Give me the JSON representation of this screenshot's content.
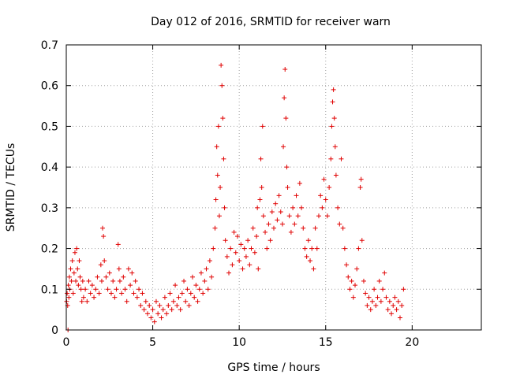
{
  "chart_data": {
    "type": "scatter",
    "title": "Day 012 of 2016, SRMTID for receiver warn",
    "xlabel": "GPS time / hours",
    "ylabel": "SRMTID / TECUs",
    "xlim": [
      0,
      24
    ],
    "ylim": [
      0,
      0.7
    ],
    "xticks": [
      0,
      5,
      10,
      15,
      20
    ],
    "xtick_labels": [
      "0",
      "5",
      "10",
      "15",
      "20"
    ],
    "yticks": [
      0,
      0.1,
      0.2,
      0.3,
      0.4,
      0.5,
      0.6,
      0.7
    ],
    "ytick_labels": [
      "0",
      "0.1",
      "0.2",
      "0.3",
      "0.4",
      "0.5",
      "0.6",
      "0.7"
    ],
    "grid": true,
    "marker": "+",
    "color": "#e00000",
    "series": [
      {
        "name": "SRMTID",
        "points": [
          [
            0.02,
            0.07
          ],
          [
            0.05,
            0.09
          ],
          [
            0.08,
            0.06
          ],
          [
            0.1,
            0.0
          ],
          [
            0.12,
            0.11
          ],
          [
            0.15,
            0.08
          ],
          [
            0.18,
            0.13
          ],
          [
            0.2,
            0.1
          ],
          [
            0.25,
            0.15
          ],
          [
            0.3,
            0.12
          ],
          [
            0.35,
            0.17
          ],
          [
            0.4,
            0.09
          ],
          [
            0.45,
            0.14
          ],
          [
            0.5,
            0.19
          ],
          [
            0.55,
            0.12
          ],
          [
            0.6,
            0.2
          ],
          [
            0.65,
            0.15
          ],
          [
            0.7,
            0.11
          ],
          [
            0.75,
            0.17
          ],
          [
            0.8,
            0.13
          ],
          [
            0.85,
            0.1
          ],
          [
            0.9,
            0.07
          ],
          [
            0.95,
            0.12
          ],
          [
            1.0,
            0.08
          ],
          [
            1.1,
            0.1
          ],
          [
            1.2,
            0.07
          ],
          [
            1.3,
            0.12
          ],
          [
            1.4,
            0.09
          ],
          [
            1.5,
            0.11
          ],
          [
            1.6,
            0.08
          ],
          [
            1.7,
            0.1
          ],
          [
            1.8,
            0.13
          ],
          [
            1.9,
            0.09
          ],
          [
            2.0,
            0.16
          ],
          [
            2.05,
            0.12
          ],
          [
            2.1,
            0.25
          ],
          [
            2.15,
            0.23
          ],
          [
            2.2,
            0.17
          ],
          [
            2.3,
            0.13
          ],
          [
            2.4,
            0.1
          ],
          [
            2.5,
            0.14
          ],
          [
            2.6,
            0.09
          ],
          [
            2.7,
            0.12
          ],
          [
            2.8,
            0.08
          ],
          [
            2.9,
            0.1
          ],
          [
            3.0,
            0.21
          ],
          [
            3.05,
            0.15
          ],
          [
            3.1,
            0.12
          ],
          [
            3.2,
            0.09
          ],
          [
            3.3,
            0.13
          ],
          [
            3.4,
            0.1
          ],
          [
            3.5,
            0.07
          ],
          [
            3.6,
            0.15
          ],
          [
            3.7,
            0.11
          ],
          [
            3.8,
            0.14
          ],
          [
            3.9,
            0.09
          ],
          [
            4.0,
            0.12
          ],
          [
            4.1,
            0.08
          ],
          [
            4.2,
            0.1
          ],
          [
            4.3,
            0.06
          ],
          [
            4.4,
            0.09
          ],
          [
            4.5,
            0.05
          ],
          [
            4.6,
            0.07
          ],
          [
            4.7,
            0.04
          ],
          [
            4.8,
            0.06
          ],
          [
            4.9,
            0.03
          ],
          [
            5.0,
            0.05
          ],
          [
            5.1,
            0.02
          ],
          [
            5.2,
            0.07
          ],
          [
            5.3,
            0.04
          ],
          [
            5.4,
            0.06
          ],
          [
            5.5,
            0.03
          ],
          [
            5.6,
            0.05
          ],
          [
            5.7,
            0.08
          ],
          [
            5.8,
            0.04
          ],
          [
            5.9,
            0.06
          ],
          [
            6.0,
            0.09
          ],
          [
            6.1,
            0.05
          ],
          [
            6.2,
            0.07
          ],
          [
            6.3,
            0.11
          ],
          [
            6.4,
            0.06
          ],
          [
            6.5,
            0.08
          ],
          [
            6.6,
            0.05
          ],
          [
            6.7,
            0.09
          ],
          [
            6.8,
            0.12
          ],
          [
            6.9,
            0.07
          ],
          [
            7.0,
            0.1
          ],
          [
            7.1,
            0.06
          ],
          [
            7.2,
            0.09
          ],
          [
            7.3,
            0.13
          ],
          [
            7.4,
            0.08
          ],
          [
            7.5,
            0.11
          ],
          [
            7.6,
            0.07
          ],
          [
            7.7,
            0.1
          ],
          [
            7.8,
            0.14
          ],
          [
            7.9,
            0.09
          ],
          [
            8.0,
            0.12
          ],
          [
            8.1,
            0.15
          ],
          [
            8.2,
            0.1
          ],
          [
            8.3,
            0.17
          ],
          [
            8.4,
            0.13
          ],
          [
            8.5,
            0.2
          ],
          [
            8.6,
            0.25
          ],
          [
            8.65,
            0.32
          ],
          [
            8.7,
            0.45
          ],
          [
            8.75,
            0.38
          ],
          [
            8.8,
            0.5
          ],
          [
            8.85,
            0.28
          ],
          [
            8.9,
            0.35
          ],
          [
            8.95,
            0.65
          ],
          [
            9.0,
            0.6
          ],
          [
            9.05,
            0.52
          ],
          [
            9.1,
            0.42
          ],
          [
            9.15,
            0.3
          ],
          [
            9.2,
            0.22
          ],
          [
            9.3,
            0.18
          ],
          [
            9.4,
            0.14
          ],
          [
            9.5,
            0.2
          ],
          [
            9.6,
            0.16
          ],
          [
            9.7,
            0.24
          ],
          [
            9.8,
            0.19
          ],
          [
            9.9,
            0.23
          ],
          [
            10.0,
            0.17
          ],
          [
            10.1,
            0.21
          ],
          [
            10.2,
            0.15
          ],
          [
            10.3,
            0.2
          ],
          [
            10.4,
            0.18
          ],
          [
            10.5,
            0.22
          ],
          [
            10.6,
            0.16
          ],
          [
            10.7,
            0.2
          ],
          [
            10.8,
            0.25
          ],
          [
            10.9,
            0.19
          ],
          [
            11.0,
            0.23
          ],
          [
            11.05,
            0.3
          ],
          [
            11.1,
            0.15
          ],
          [
            11.2,
            0.32
          ],
          [
            11.25,
            0.42
          ],
          [
            11.3,
            0.35
          ],
          [
            11.35,
            0.5
          ],
          [
            11.4,
            0.28
          ],
          [
            11.5,
            0.24
          ],
          [
            11.6,
            0.2
          ],
          [
            11.7,
            0.26
          ],
          [
            11.8,
            0.22
          ],
          [
            11.9,
            0.29
          ],
          [
            12.0,
            0.25
          ],
          [
            12.1,
            0.31
          ],
          [
            12.2,
            0.27
          ],
          [
            12.3,
            0.33
          ],
          [
            12.4,
            0.29
          ],
          [
            12.5,
            0.26
          ],
          [
            12.55,
            0.45
          ],
          [
            12.6,
            0.57
          ],
          [
            12.65,
            0.64
          ],
          [
            12.7,
            0.52
          ],
          [
            12.75,
            0.4
          ],
          [
            12.8,
            0.35
          ],
          [
            12.9,
            0.28
          ],
          [
            13.0,
            0.24
          ],
          [
            13.1,
            0.3
          ],
          [
            13.2,
            0.26
          ],
          [
            13.3,
            0.33
          ],
          [
            13.4,
            0.28
          ],
          [
            13.5,
            0.36
          ],
          [
            13.6,
            0.3
          ],
          [
            13.7,
            0.25
          ],
          [
            13.8,
            0.2
          ],
          [
            13.9,
            0.18
          ],
          [
            14.0,
            0.22
          ],
          [
            14.1,
            0.17
          ],
          [
            14.2,
            0.2
          ],
          [
            14.3,
            0.15
          ],
          [
            14.4,
            0.25
          ],
          [
            14.5,
            0.2
          ],
          [
            14.6,
            0.28
          ],
          [
            14.7,
            0.33
          ],
          [
            14.8,
            0.3
          ],
          [
            14.9,
            0.37
          ],
          [
            15.0,
            0.32
          ],
          [
            15.1,
            0.28
          ],
          [
            15.2,
            0.35
          ],
          [
            15.3,
            0.42
          ],
          [
            15.35,
            0.5
          ],
          [
            15.4,
            0.56
          ],
          [
            15.45,
            0.59
          ],
          [
            15.5,
            0.52
          ],
          [
            15.55,
            0.45
          ],
          [
            15.6,
            0.38
          ],
          [
            15.7,
            0.3
          ],
          [
            15.8,
            0.26
          ],
          [
            15.9,
            0.42
          ],
          [
            16.0,
            0.25
          ],
          [
            16.1,
            0.2
          ],
          [
            16.2,
            0.16
          ],
          [
            16.3,
            0.13
          ],
          [
            16.4,
            0.1
          ],
          [
            16.5,
            0.12
          ],
          [
            16.6,
            0.08
          ],
          [
            16.7,
            0.11
          ],
          [
            16.8,
            0.15
          ],
          [
            16.9,
            0.2
          ],
          [
            17.0,
            0.35
          ],
          [
            17.05,
            0.37
          ],
          [
            17.1,
            0.22
          ],
          [
            17.2,
            0.12
          ],
          [
            17.3,
            0.09
          ],
          [
            17.4,
            0.06
          ],
          [
            17.5,
            0.08
          ],
          [
            17.6,
            0.05
          ],
          [
            17.7,
            0.07
          ],
          [
            17.8,
            0.1
          ],
          [
            17.9,
            0.06
          ],
          [
            18.0,
            0.08
          ],
          [
            18.1,
            0.12
          ],
          [
            18.2,
            0.07
          ],
          [
            18.3,
            0.1
          ],
          [
            18.4,
            0.14
          ],
          [
            18.5,
            0.08
          ],
          [
            18.6,
            0.05
          ],
          [
            18.7,
            0.07
          ],
          [
            18.8,
            0.04
          ],
          [
            18.9,
            0.06
          ],
          [
            19.0,
            0.08
          ],
          [
            19.1,
            0.05
          ],
          [
            19.2,
            0.07
          ],
          [
            19.3,
            0.03
          ],
          [
            19.4,
            0.06
          ],
          [
            19.5,
            0.1
          ]
        ]
      }
    ]
  }
}
